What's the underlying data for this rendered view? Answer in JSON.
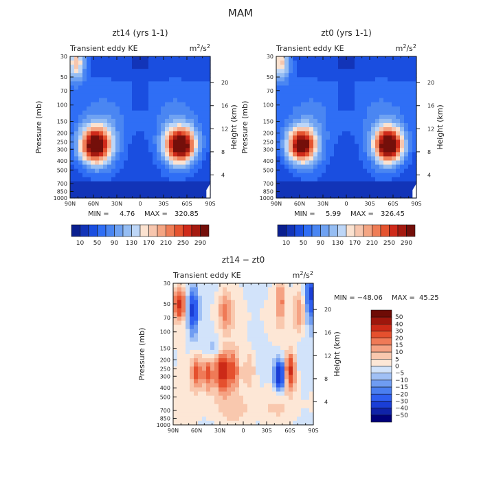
{
  "page": {
    "title": "MAM"
  },
  "chart_data": [
    {
      "type": "heatmap",
      "id": "zt14",
      "title": "zt14 (yrs 1-1)",
      "subtitle": "Transient eddy KE",
      "units": "m²/s²",
      "ylabel": "Pressure (mb)",
      "ylabel_right": "Height (km)",
      "x_ticks": [
        "90N",
        "60N",
        "30N",
        "0",
        "30S",
        "60S",
        "90S"
      ],
      "x_range": [
        90,
        -90
      ],
      "y_ticks": [
        30,
        50,
        70,
        100,
        150,
        200,
        250,
        300,
        400,
        500,
        700,
        850,
        1000
      ],
      "y_range": [
        30,
        1000
      ],
      "y_scale": "log",
      "height_ticks": [
        4,
        8,
        12,
        16,
        20
      ],
      "min_label": "MIN =",
      "min_value": "4.76",
      "max_label": "MAX =",
      "max_value": "320.85",
      "features": [
        {
          "lat": 58,
          "p": 270,
          "value": 320,
          "sx": 14,
          "sy": 0.32
        },
        {
          "lat": -52,
          "p": 270,
          "value": 320,
          "sx": 14,
          "sy": 0.3
        },
        {
          "lat": 82,
          "p": 35,
          "value": 180,
          "sx": 8,
          "sy": 0.3
        }
      ],
      "colorbar": {
        "levels": [
          10,
          30,
          50,
          70,
          90,
          110,
          130,
          150,
          170,
          190,
          210,
          230,
          250,
          270,
          290
        ],
        "labels": [
          "10",
          "50",
          "90",
          "130",
          "170",
          "210",
          "250",
          "290"
        ],
        "colors": [
          "#0a1f8f",
          "#1234b8",
          "#1a4ee0",
          "#2f6ef5",
          "#4a86f2",
          "#6fa2f2",
          "#95bdf3",
          "#bdd6f7",
          "#fbe2d0",
          "#f7c6ae",
          "#f4a583",
          "#ef7d56",
          "#e5532f",
          "#cf2a1a",
          "#a51a10",
          "#740f0a"
        ]
      }
    },
    {
      "type": "heatmap",
      "id": "zt0",
      "title": "zt0 (yrs 1-1)",
      "subtitle": "Transient eddy KE",
      "units": "m²/s²",
      "ylabel": "Pressure (mb)",
      "ylabel_right": "Height (km)",
      "x_ticks": [
        "90N",
        "60N",
        "30N",
        "0",
        "30S",
        "60S",
        "90S"
      ],
      "x_range": [
        90,
        -90
      ],
      "y_ticks": [
        30,
        50,
        70,
        100,
        150,
        200,
        250,
        300,
        400,
        500,
        700,
        850,
        1000
      ],
      "y_range": [
        30,
        1000
      ],
      "y_scale": "log",
      "height_ticks": [
        4,
        8,
        12,
        16,
        20
      ],
      "min_label": "MIN =",
      "min_value": "5.99",
      "max_label": "MAX =",
      "max_value": "326.45",
      "features": [
        {
          "lat": 58,
          "p": 270,
          "value": 300,
          "sx": 13,
          "sy": 0.3
        },
        {
          "lat": -55,
          "p": 270,
          "value": 326,
          "sx": 13,
          "sy": 0.3
        },
        {
          "lat": 84,
          "p": 35,
          "value": 175,
          "sx": 8,
          "sy": 0.3
        }
      ],
      "colorbar": {
        "levels": [
          10,
          30,
          50,
          70,
          90,
          110,
          130,
          150,
          170,
          190,
          210,
          230,
          250,
          270,
          290
        ],
        "labels": [
          "10",
          "50",
          "90",
          "130",
          "170",
          "210",
          "250",
          "290"
        ],
        "colors": [
          "#0a1f8f",
          "#1234b8",
          "#1a4ee0",
          "#2f6ef5",
          "#4a86f2",
          "#6fa2f2",
          "#95bdf3",
          "#bdd6f7",
          "#fbe2d0",
          "#f7c6ae",
          "#f4a583",
          "#ef7d56",
          "#e5532f",
          "#cf2a1a",
          "#a51a10",
          "#740f0a"
        ]
      }
    },
    {
      "type": "heatmap",
      "id": "diff",
      "title": "zt14 − zt0",
      "subtitle": "Transient eddy KE",
      "units": "m²/s²",
      "ylabel": "Pressure (mb)",
      "ylabel_right": "Height (km)",
      "x_ticks": [
        "90N",
        "60N",
        "30N",
        "0",
        "30S",
        "60S",
        "90S"
      ],
      "x_range": [
        90,
        -90
      ],
      "y_ticks": [
        30,
        50,
        70,
        100,
        150,
        200,
        250,
        300,
        400,
        500,
        700,
        850,
        1000
      ],
      "y_range": [
        30,
        1000
      ],
      "y_scale": "log",
      "height_ticks": [
        4,
        8,
        12,
        16,
        20
      ],
      "min_label": "MIN = −48.06",
      "max_label": "MAX =",
      "max_value": "45.25",
      "features": [
        {
          "lat": 82,
          "p": 50,
          "value": 30,
          "sx": 5,
          "sy": 0.25
        },
        {
          "lat": 65,
          "p": 60,
          "value": -35,
          "sx": 5,
          "sy": 0.4
        },
        {
          "lat": 60,
          "p": 270,
          "value": 25,
          "sx": 5,
          "sy": 0.3
        },
        {
          "lat": 45,
          "p": 280,
          "value": 25,
          "sx": 5,
          "sy": 0.3
        },
        {
          "lat": 27,
          "p": 260,
          "value": 40,
          "sx": 6,
          "sy": 0.35
        },
        {
          "lat": 12,
          "p": 250,
          "value": 20,
          "sx": 5,
          "sy": 0.35
        },
        {
          "lat": 23,
          "p": 60,
          "value": 15,
          "sx": 6,
          "sy": 0.35
        },
        {
          "lat": -8,
          "p": 250,
          "value": 12,
          "sx": 6,
          "sy": 0.35
        },
        {
          "lat": -47,
          "p": 290,
          "value": -45,
          "sx": 5,
          "sy": 0.25
        },
        {
          "lat": -60,
          "p": 260,
          "value": 35,
          "sx": 5,
          "sy": 0.3
        },
        {
          "lat": -48,
          "p": 45,
          "value": 15,
          "sx": 4,
          "sy": 0.4
        },
        {
          "lat": -72,
          "p": 60,
          "value": 15,
          "sx": 5,
          "sy": 0.4
        },
        {
          "lat": -87,
          "p": 40,
          "value": -30,
          "sx": 5,
          "sy": 0.5
        },
        {
          "lat": 0,
          "p": 700,
          "value": 5,
          "sx": 40,
          "sy": 0.25
        },
        {
          "lat": 35,
          "p": 150,
          "value": -8,
          "sx": 8,
          "sy": 0.2
        }
      ],
      "colorbar": {
        "levels": [
          -50,
          -40,
          -30,
          -20,
          -15,
          -10,
          -5,
          0,
          5,
          10,
          15,
          20,
          30,
          40,
          50
        ],
        "labels": [
          "50",
          "40",
          "30",
          "20",
          "15",
          "10",
          "5",
          "0",
          "−5",
          "−10",
          "−15",
          "−20",
          "−30",
          "−40",
          "−50"
        ],
        "colors": [
          "#00007a",
          "#0f22a8",
          "#1a3ed6",
          "#2e5ef0",
          "#4a7ef0",
          "#6f9cf2",
          "#a0c0f5",
          "#d2e3fa",
          "#fde7d6",
          "#f9c8ae",
          "#f5a283",
          "#ef7a57",
          "#e5502e",
          "#cc2a17",
          "#9e160c",
          "#6e0b05"
        ]
      }
    }
  ]
}
